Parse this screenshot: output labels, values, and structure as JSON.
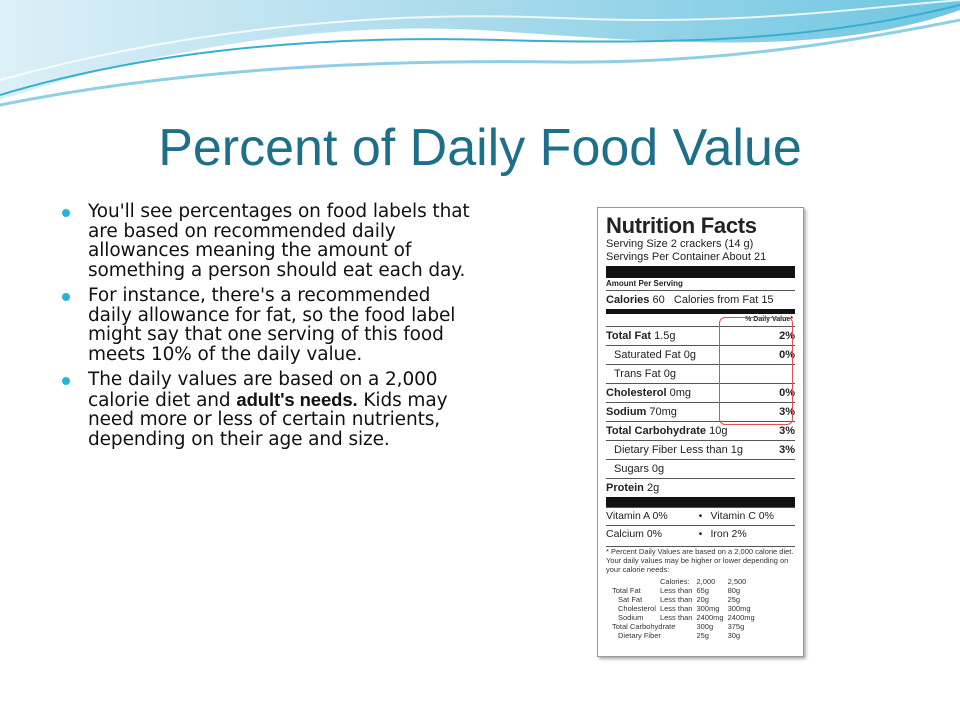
{
  "title": "Percent of Daily Food Value",
  "bullets": [
    {
      "text": "You'll see percentages on food labels that are based on recommended daily allowances meaning the amount of something a person should eat each  day."
    },
    {
      "text": "For instance, there's a recommended daily allowance for fat, so the food label might say that one serving of this food meets 10% of the daily value."
    },
    {
      "text": "The daily values are based on a 2,000 calorie diet and",
      "bold": "adult's needs.",
      "rest": "Kids may need more or less of certain nutrients, depending on their age and size."
    }
  ],
  "label": {
    "title": "Nutrition Facts",
    "serving_size": "Serving Size 2 crackers (14 g)",
    "servings": "Servings Per Container About 21",
    "amount_per_serving": "Amount Per Serving",
    "calories": {
      "name": "Calories",
      "amount": "60",
      "from_fat": "Calories from Fat 15"
    },
    "dv_header": "% Daily Value*",
    "rows": [
      {
        "name": "Total Fat",
        "amount": "1.5g",
        "dv": "2%"
      },
      {
        "name": "Saturated Fat 0g",
        "dv": "0%"
      },
      {
        "name": "Trans Fat 0g"
      },
      {
        "name": "Cholesterol",
        "amount": "0mg",
        "dv": "0%"
      },
      {
        "name": "Sodium",
        "amount": "70mg",
        "dv": "3%"
      },
      {
        "name": "Total Carbohydrate",
        "amount": "10g",
        "dv": "3%"
      },
      {
        "name": "Dietary Fiber Less than 1g",
        "dv": "3%"
      },
      {
        "name": "Sugars 0g"
      },
      {
        "name": "Protein",
        "amount": "2g"
      }
    ],
    "vitamins": [
      [
        "Vitamin A 0%",
        "•",
        "Vitamin C 0%"
      ],
      [
        "Calcium 0%",
        "•",
        "Iron 2%"
      ]
    ],
    "footnote": "* Percent Daily Values are based on a 2,000 calorie diet. Your daily values may be higher or lower depending on your calorie needs:",
    "table_header": [
      "Calories:",
      "2,000",
      "2,500"
    ],
    "table": [
      [
        "Total Fat",
        "Less than",
        "65g",
        "80g"
      ],
      [
        "Sat Fat",
        "Less than",
        "20g",
        "25g"
      ],
      [
        "Cholesterol",
        "Less than",
        "300mg",
        "300mg"
      ],
      [
        "Sodium",
        "Less than",
        "2400mg",
        "2400mg"
      ],
      [
        "Total Carbohydrate",
        "300g",
        "375g"
      ],
      [
        "Dietary Fiber",
        "25g",
        "30g"
      ]
    ]
  }
}
